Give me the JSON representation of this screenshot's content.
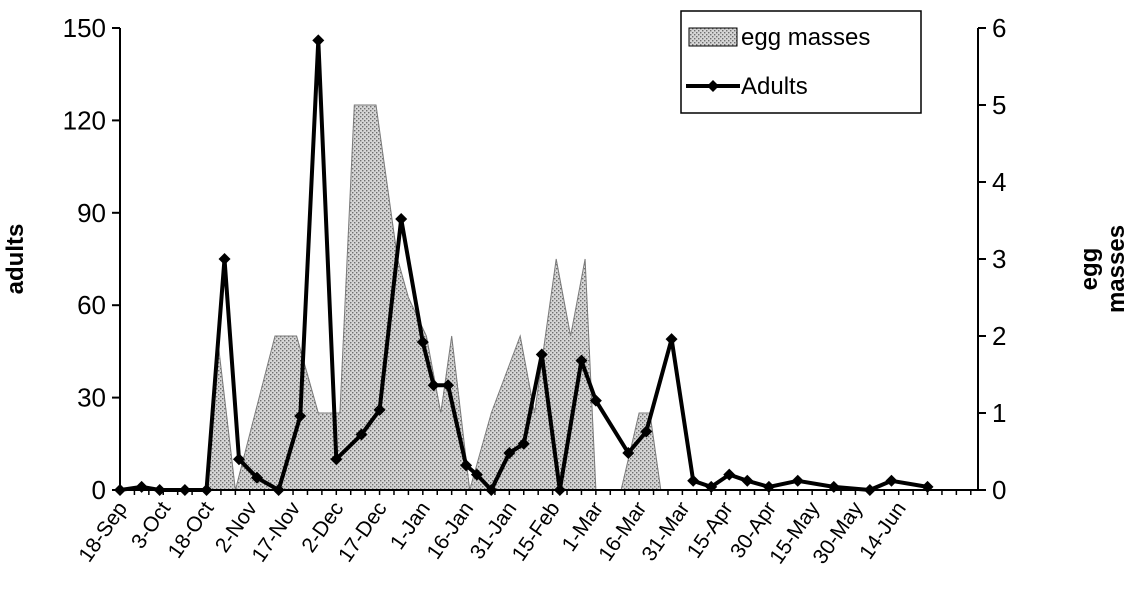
{
  "chart_data": {
    "type": "line",
    "title": "",
    "ylabel_left": "adults",
    "ylabel_right": [
      "egg",
      "masses"
    ],
    "xlabel": "",
    "ylim_left": [
      0,
      150
    ],
    "yticks_left": [
      "0",
      "30",
      "60",
      "90",
      "120",
      "150"
    ],
    "ylim_right": [
      0,
      6
    ],
    "yticks_right": [
      "0",
      "1",
      "2",
      "3",
      "4",
      "5",
      "6"
    ],
    "xlim": [
      0,
      59.5
    ],
    "x_tick_labels": [
      "18-Sep",
      "3-Oct",
      "18-Oct",
      "2-Nov",
      "17-Nov",
      "2-Dec",
      "17-Dec",
      "1-Jan",
      "16-Jan",
      "31-Jan",
      "15-Feb",
      "1-Mar",
      "16-Mar",
      "31-Mar",
      "15-Apr",
      "30-Apr",
      "15-May",
      "30-May",
      "14-Jun"
    ],
    "x_tick_positions": [
      0,
      3,
      6,
      9,
      12,
      15,
      18,
      21,
      24,
      27,
      30,
      33,
      36,
      39,
      42,
      45,
      48,
      51,
      54
    ],
    "grid": false,
    "legend_position": "top-right",
    "legend": [
      {
        "label": "egg masses",
        "kind": "area"
      },
      {
        "label": "Adults",
        "kind": "line"
      }
    ],
    "series": [
      {
        "name": "egg masses",
        "axis": "right",
        "style": "area",
        "color": "#c8c8c8",
        "x": [
          6,
          6.75,
          8,
          10.75,
          12.25,
          13.75,
          15.25,
          16.25,
          17.3,
          17.75,
          19.25,
          20,
          21.25,
          22.25,
          23,
          24.25,
          25.75,
          27.75,
          28.75,
          30.25,
          31.25,
          32.25,
          33,
          34.75,
          36,
          36.75,
          37.5,
          38.25,
          39.75,
          59.5
        ],
        "values": [
          0,
          2,
          0,
          2,
          2,
          1,
          1,
          5,
          5,
          5,
          3,
          2.5,
          2,
          1,
          2,
          0,
          1,
          2,
          1,
          3,
          2,
          3,
          0,
          0,
          1,
          1,
          0,
          0,
          0,
          0
        ]
      },
      {
        "name": "Adults",
        "axis": "left",
        "style": "line",
        "color": "#000000",
        "x": [
          0,
          1.5,
          2.75,
          4.5,
          6,
          7.25,
          8.25,
          9.5,
          11,
          12.5,
          13.75,
          15,
          16.75,
          18,
          19.5,
          21,
          21.75,
          22.75,
          24,
          24.75,
          25.75,
          27,
          28,
          29.25,
          30.5,
          32,
          33,
          35.25,
          36.5,
          38.25,
          39.75,
          41,
          42.25,
          43.5,
          45,
          47,
          49.5,
          52,
          53.5,
          56
        ],
        "values": [
          0,
          1,
          0,
          0,
          0,
          75,
          10,
          4,
          0,
          24,
          146,
          10,
          18,
          26,
          88,
          48,
          34,
          34,
          8,
          5,
          0,
          12,
          15,
          44,
          0,
          42,
          29,
          12,
          19,
          49,
          3,
          1,
          5,
          3,
          1,
          3,
          1,
          0,
          3,
          1
        ]
      }
    ]
  }
}
